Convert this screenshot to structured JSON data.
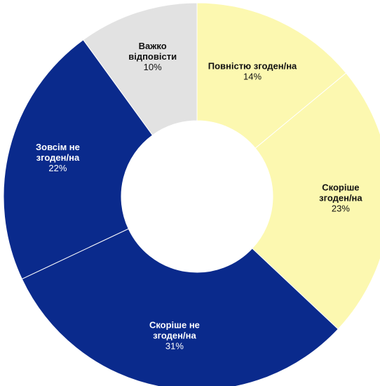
{
  "chart_data": {
    "type": "pie",
    "title": "",
    "donut": true,
    "slices": [
      {
        "label": "Повністю згоден/на",
        "value": 14,
        "display": "14%",
        "color": "#fcf8b0",
        "text_color": "#111111"
      },
      {
        "label": "Скоріше згоден/на",
        "value": 23,
        "display": "23%",
        "color": "#fcf8b0",
        "text_color": "#111111"
      },
      {
        "label": "Скоріше не згоден/на",
        "value": 31,
        "display": "31%",
        "color": "#0a2a8c",
        "text_color": "#ffffff"
      },
      {
        "label": "Зовсім не згоден/на",
        "value": 22,
        "display": "22%",
        "color": "#0a2a8c",
        "text_color": "#ffffff"
      },
      {
        "label": "Важко відповісти",
        "value": 10,
        "display": "10%",
        "color": "#e2e2e2",
        "text_color": "#111111"
      }
    ]
  }
}
